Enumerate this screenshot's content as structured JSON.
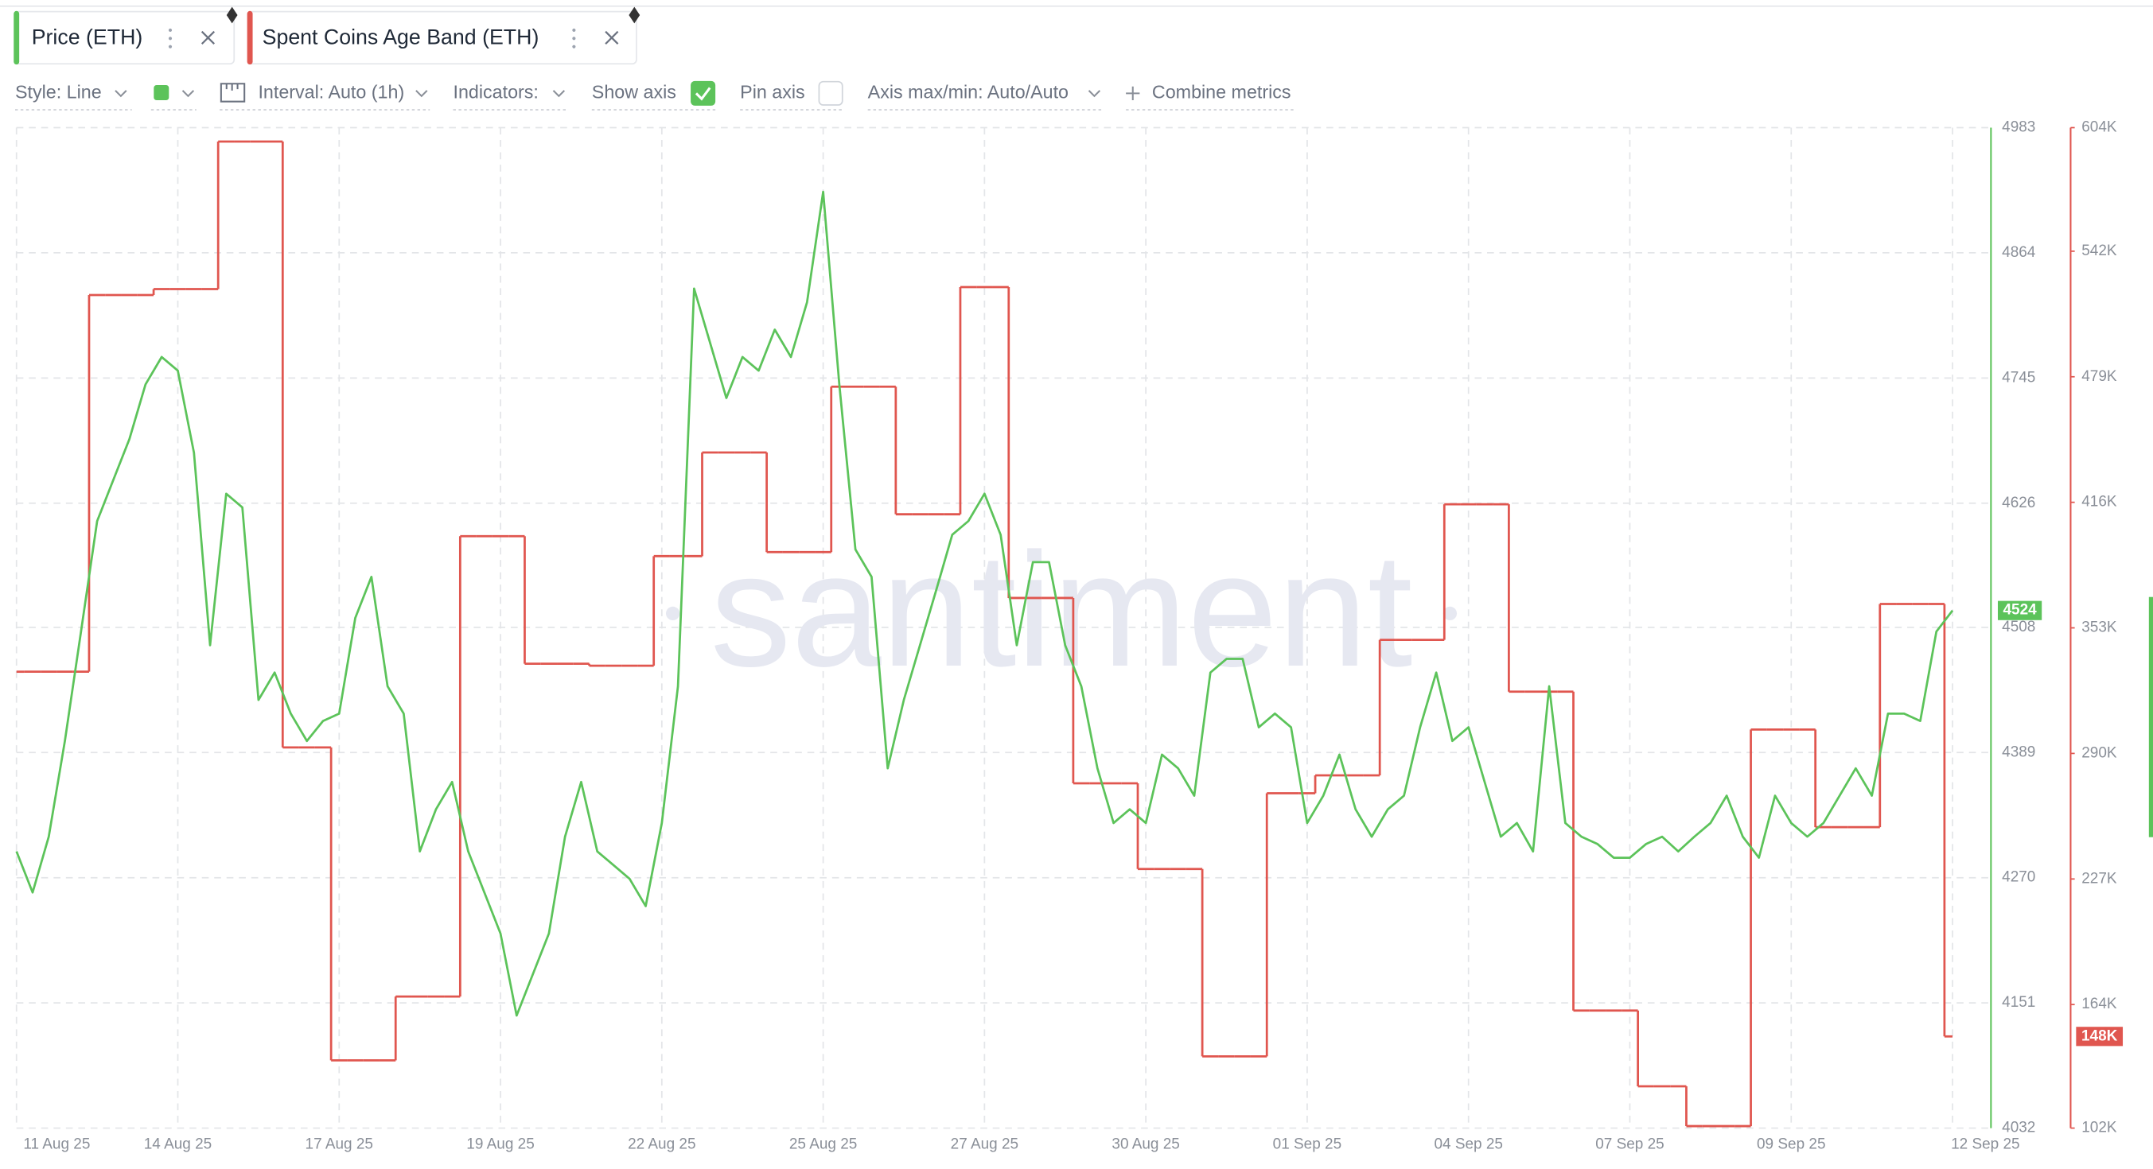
{
  "tabs": [
    "Price (ETH)",
    "Spent Coins Age Band (ETH)"
  ],
  "toolbar": {
    "style": "Style: Line",
    "interval": "Interval: Auto (1h)",
    "indicators": "Indicators:",
    "show_axis": "Show axis",
    "pin_axis": "Pin axis",
    "axis_minmax": "Axis max/min: Auto/Auto",
    "combine": "Combine metrics"
  },
  "watermark": "santiment",
  "chart_data": {
    "type": "line",
    "categories": [
      "11 Aug 25",
      null,
      null,
      null,
      null,
      null,
      null,
      null,
      null,
      null,
      "14 Aug 25",
      null,
      null,
      null,
      null,
      null,
      null,
      null,
      null,
      null,
      "17 Aug 25",
      null,
      null,
      null,
      null,
      null,
      null,
      null,
      null,
      null,
      "19 Aug 25",
      null,
      null,
      null,
      null,
      null,
      null,
      null,
      null,
      null,
      "22 Aug 25",
      null,
      null,
      null,
      null,
      null,
      null,
      null,
      null,
      null,
      "25 Aug 25",
      null,
      null,
      null,
      null,
      null,
      null,
      null,
      null,
      null,
      "27 Aug 25",
      null,
      null,
      null,
      null,
      null,
      null,
      null,
      null,
      null,
      "30 Aug 25",
      null,
      null,
      null,
      null,
      null,
      null,
      null,
      null,
      null,
      "01 Sep 25",
      null,
      null,
      null,
      null,
      null,
      null,
      null,
      null,
      null,
      "04 Sep 25",
      null,
      null,
      null,
      null,
      null,
      null,
      null,
      null,
      null,
      "07 Sep 25",
      null,
      null,
      null,
      null,
      null,
      null,
      null,
      null,
      null,
      "09 Sep 25",
      null,
      null,
      null,
      null,
      null,
      null,
      null,
      null,
      null,
      "12 Sep 25"
    ],
    "series": [
      {
        "name": "Price (ETH)",
        "color": "#5cc35a",
        "axis": "y",
        "values": [
          4295,
          4256,
          4309,
          4400,
          4504,
          4609,
          4648,
          4687,
          4739,
          4765,
          4752,
          4674,
          4491,
          4635,
          4622,
          4439,
          4465,
          4426,
          4400,
          4419,
          4426,
          4517,
          4556,
          4452,
          4426,
          4295,
          4335,
          4361,
          4295,
          4256,
          4217,
          4139,
          4178,
          4217,
          4309,
          4361,
          4295,
          4282,
          4269,
          4243,
          4322,
          4452,
          4830,
          4778,
          4726,
          4765,
          4752,
          4791,
          4765,
          4817,
          4922,
          4739,
          4582,
          4556,
          4374,
          4439,
          4491,
          4543,
          4596,
          4609,
          4635,
          4596,
          4491,
          4570,
          4570,
          4491,
          4452,
          4374,
          4322,
          4335,
          4322,
          4387,
          4374,
          4348,
          4465,
          4478,
          4478,
          4413,
          4426,
          4413,
          4322,
          4348,
          4387,
          4335,
          4309,
          4335,
          4348,
          4413,
          4465,
          4400,
          4413,
          4361,
          4309,
          4322,
          4295,
          4452,
          4322,
          4309,
          4302,
          4289,
          4289,
          4302,
          4309,
          4295,
          4309,
          4322,
          4348,
          4309,
          4289,
          4348,
          4322,
          4309,
          4322,
          4348,
          4374,
          4348,
          4426,
          4426,
          4419,
          4504,
          4524
        ]
      },
      {
        "name": "Spent Coins Age Band (ETH)",
        "color": "#e0564f",
        "axis": "y2",
        "values": [
          331000,
          331000,
          331000,
          331000,
          331000,
          520000,
          520000,
          520000,
          520000,
          523000,
          523000,
          523000,
          523000,
          597000,
          597000,
          597000,
          597000,
          293000,
          293000,
          293000,
          136000,
          136000,
          136000,
          136000,
          168000,
          168000,
          168000,
          168000,
          399000,
          399000,
          399000,
          399000,
          335000,
          335000,
          335000,
          335000,
          334000,
          334000,
          334000,
          334000,
          389000,
          389000,
          389000,
          441000,
          441000,
          441000,
          441000,
          391000,
          391000,
          391000,
          391000,
          474000,
          474000,
          474000,
          474000,
          410000,
          410000,
          410000,
          410000,
          524000,
          524000,
          524000,
          368000,
          368000,
          368000,
          368000,
          275000,
          275000,
          275000,
          275000,
          232000,
          232000,
          232000,
          232000,
          138000,
          138000,
          138000,
          138000,
          270000,
          270000,
          270000,
          279000,
          279000,
          279000,
          279000,
          347000,
          347000,
          347000,
          347000,
          415000,
          415000,
          415000,
          415000,
          321000,
          321000,
          321000,
          321000,
          161000,
          161000,
          161000,
          161000,
          123000,
          123000,
          123000,
          103000,
          103000,
          103000,
          103000,
          302000,
          302000,
          302000,
          302000,
          253000,
          253000,
          253000,
          253000,
          365000,
          365000,
          365000,
          365000,
          148000
        ],
        "value_labels": [
          null,
          null,
          null,
          null,
          null,
          null,
          null,
          null,
          null,
          null,
          null,
          null,
          null,
          null,
          null,
          null,
          null,
          null,
          null,
          null,
          null,
          null,
          null,
          null,
          null,
          null,
          null,
          null,
          null,
          null,
          null,
          null,
          null,
          null,
          null,
          null,
          null,
          null,
          null,
          null,
          null,
          null,
          null,
          null,
          null,
          null,
          null,
          null,
          null,
          null,
          null,
          null,
          null,
          null,
          null,
          null,
          null,
          null,
          null,
          null,
          null,
          null,
          null,
          null,
          null,
          null,
          null,
          null,
          null,
          null,
          null,
          null,
          null,
          null,
          null,
          null,
          null,
          null,
          null,
          null,
          null,
          null,
          null,
          null,
          null,
          null,
          null,
          null,
          null,
          null,
          null,
          null,
          null,
          null,
          null,
          null,
          null,
          null,
          null,
          null,
          null,
          null,
          null,
          null,
          null,
          null,
          null,
          null,
          null,
          null,
          null,
          null,
          null,
          null,
          null,
          null,
          null,
          null,
          null,
          null,
          "148K"
        ]
      }
    ],
    "ylim": [
      4032,
      4983
    ],
    "yticks": [
      4032,
      4151,
      4270,
      4389,
      4508,
      4626,
      4745,
      4864,
      4983
    ],
    "y2lim": [
      102000,
      604000
    ],
    "y2ticks": [
      {
        "value": 102000,
        "label": "102K"
      },
      {
        "value": 164000,
        "label": "164K"
      },
      {
        "value": 227000,
        "label": "227K"
      },
      {
        "value": 290000,
        "label": "290K"
      },
      {
        "value": 353000,
        "label": "353K"
      },
      {
        "value": 416000,
        "label": "416K"
      },
      {
        "value": 479000,
        "label": "479K"
      },
      {
        "value": 542000,
        "label": "542K"
      },
      {
        "value": 604000,
        "label": "604K"
      }
    ],
    "grid": true
  }
}
